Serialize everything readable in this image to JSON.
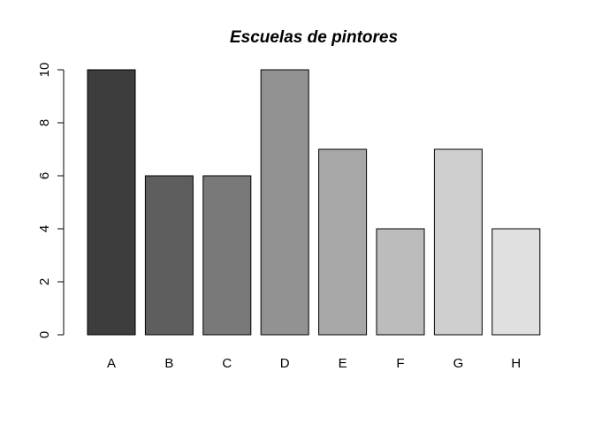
{
  "chart_data": {
    "type": "bar",
    "title": "Escuelas de pintores",
    "xlabel": "",
    "ylabel": "",
    "categories": [
      "A",
      "B",
      "C",
      "D",
      "E",
      "F",
      "G",
      "H"
    ],
    "values": [
      10,
      6,
      6,
      10,
      7,
      4,
      7,
      4
    ],
    "colors": [
      "#3d3d3d",
      "#5e5e5e",
      "#797979",
      "#929292",
      "#a8a8a8",
      "#bcbcbc",
      "#cfcfcf",
      "#e0e0e0"
    ],
    "ylim": [
      0,
      10
    ],
    "yticks": [
      0,
      2,
      4,
      6,
      8,
      10
    ],
    "grid": false,
    "legend": "none"
  }
}
